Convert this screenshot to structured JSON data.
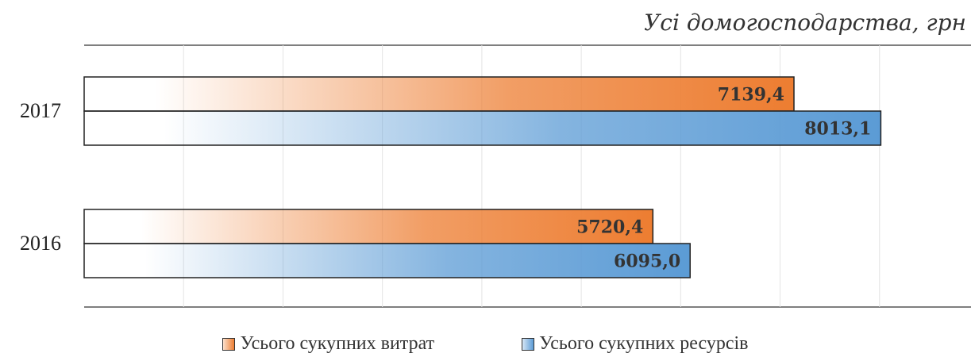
{
  "chart_data": {
    "type": "bar",
    "orientation": "horizontal",
    "subtitle": "Усі домогосподарства, грн",
    "categories": [
      "2017",
      "2016"
    ],
    "series": [
      {
        "name": "Усього сукупних витрат",
        "values": [
          7139.4,
          5720.4
        ],
        "labels": [
          "7139,4",
          "5720,4"
        ],
        "color": "#ed7d31"
      },
      {
        "name": "Усього сукупних ресурсів",
        "values": [
          8013.1,
          6095.0
        ],
        "labels": [
          "8013,1",
          "6095,0"
        ],
        "color": "#5b9bd5"
      }
    ],
    "xlim": [
      0,
      9000
    ],
    "grid": true,
    "legend_position": "bottom"
  }
}
